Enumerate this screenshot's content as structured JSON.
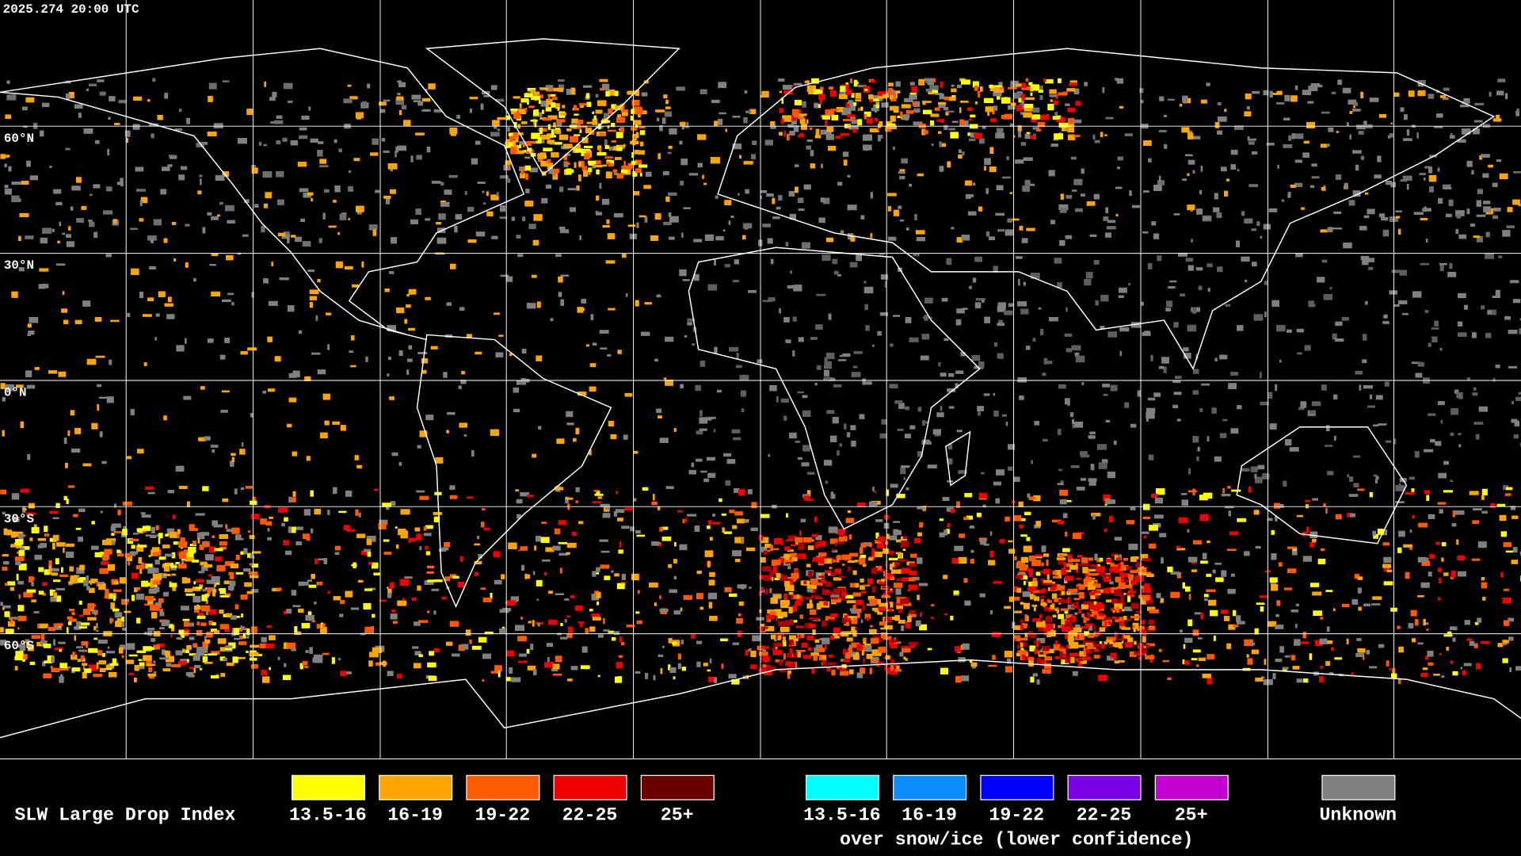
{
  "header": {
    "timestamp": "2025.274 20:00 UTC"
  },
  "map": {
    "lat_labels": [
      "60°N",
      "30°N",
      "0°N",
      "30°S",
      "60°S"
    ]
  },
  "legend": {
    "title": "SLW Large Drop Index",
    "liquid": [
      "13.5-16",
      "16-19",
      "19-22",
      "22-25",
      "25+"
    ],
    "snow_ice": [
      "13.5-16",
      "16-19",
      "19-22",
      "22-25",
      "25+"
    ],
    "snow_ice_note": "over snow/ice (lower confidence)",
    "unknown": "Unknown"
  }
}
